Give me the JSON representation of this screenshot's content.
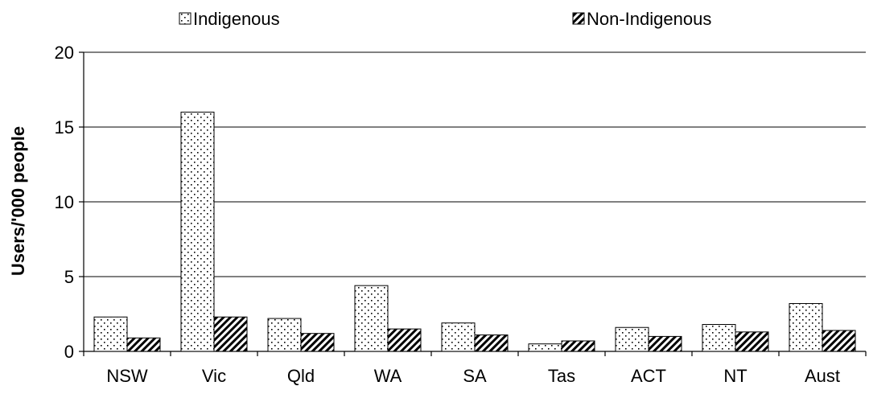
{
  "chart_data": {
    "type": "bar",
    "categories": [
      "NSW",
      "Vic",
      "Qld",
      "WA",
      "SA",
      "Tas",
      "ACT",
      "NT",
      "Aust"
    ],
    "series": [
      {
        "name": "Indigenous",
        "values": [
          2.3,
          16.0,
          2.2,
          4.4,
          1.9,
          0.5,
          1.6,
          1.8,
          3.2
        ],
        "pattern": "dots"
      },
      {
        "name": "Non-Indigenous",
        "values": [
          0.9,
          2.3,
          1.2,
          1.5,
          1.1,
          0.7,
          1.0,
          1.3,
          1.4
        ],
        "pattern": "diagonal-hatch"
      }
    ],
    "title": "",
    "xlabel": "",
    "ylabel": "Users/'000 people",
    "ylim": [
      0,
      20
    ],
    "yticks": [
      0,
      5,
      10,
      15,
      20
    ],
    "grid": true,
    "legend_position": "top"
  }
}
